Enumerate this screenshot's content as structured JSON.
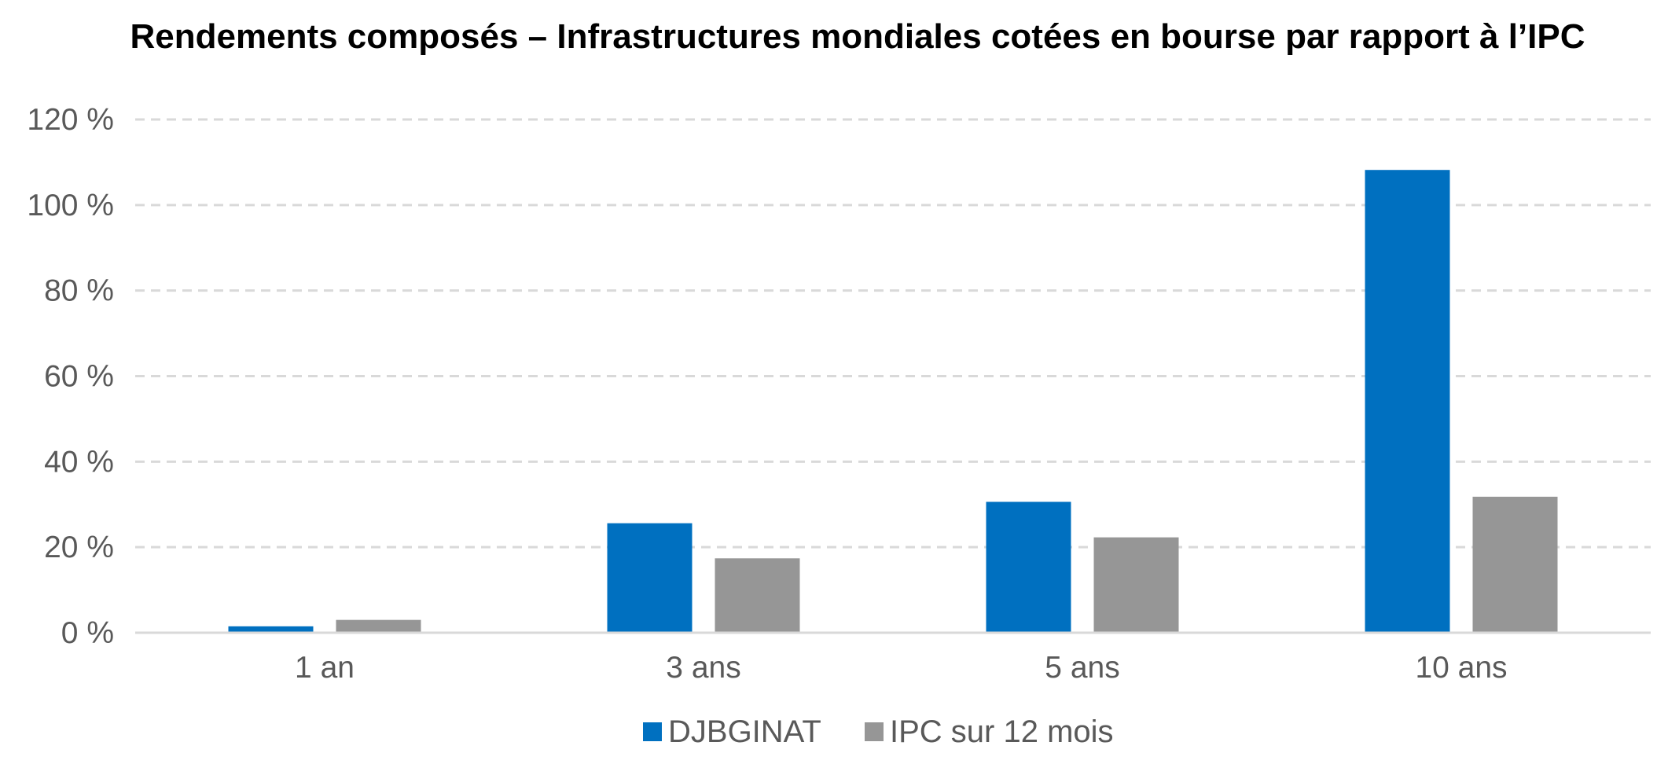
{
  "chart_data": {
    "type": "bar",
    "title": "Rendements composés – Infrastructures mondiales cotées en bourse par rapport à l’IPC",
    "categories": [
      "1 an",
      "3 ans",
      "5 ans",
      "10 ans"
    ],
    "series": [
      {
        "name": "DJBGINAT",
        "color": "#0070C0",
        "values": [
          1.5,
          25.6,
          30.6,
          108.2
        ]
      },
      {
        "name": "IPC sur 12 mois",
        "color": "#969696",
        "values": [
          3.0,
          17.4,
          22.3,
          31.8
        ]
      }
    ],
    "ylim": [
      0,
      120
    ],
    "yticks": [
      0,
      20,
      40,
      60,
      80,
      100,
      120
    ],
    "ytick_labels": [
      "0 %",
      "20 %",
      "40 %",
      "60 %",
      "80 %",
      "100 %",
      "120 %"
    ],
    "xlabel": "",
    "ylabel": "",
    "grid": true,
    "legend_position": "bottom"
  }
}
